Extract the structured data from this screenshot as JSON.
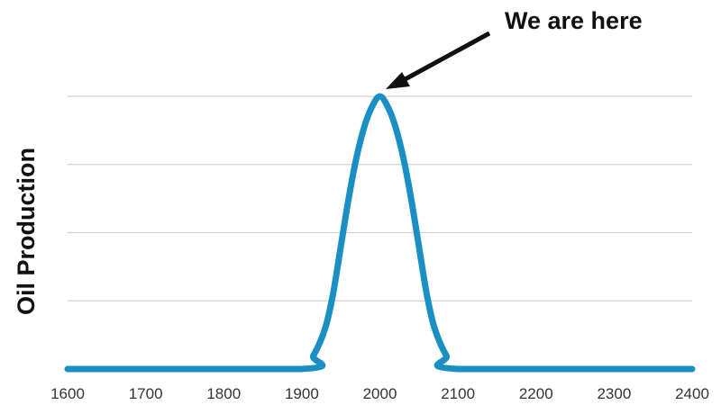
{
  "chart_data": {
    "type": "line",
    "title": "",
    "annotation": "We are here",
    "xlabel": "",
    "ylabel": "Oil Production",
    "x_ticks": [
      1600,
      1700,
      1800,
      1900,
      2000,
      2100,
      2200,
      2300,
      2400
    ],
    "xlim": [
      1600,
      2400
    ],
    "ylim": [
      0,
      4
    ],
    "y_gridlines": [
      1,
      2,
      3,
      4
    ],
    "y_tick_labels_visible": false,
    "grid": true,
    "legend": null,
    "series": [
      {
        "name": "Oil Production",
        "color": "#1a8fc4",
        "x": [
          1600,
          1900,
          1915,
          1930,
          1940,
          1950,
          1960,
          1970,
          1980,
          1990,
          2000,
          2010,
          2020,
          2030,
          2040,
          2050,
          2060,
          2070,
          2085,
          2100,
          2400
        ],
        "y": [
          0,
          0,
          0.2,
          0.6,
          1.1,
          1.8,
          2.5,
          3.1,
          3.55,
          3.85,
          4.0,
          3.85,
          3.55,
          3.1,
          2.5,
          1.8,
          1.1,
          0.6,
          0.2,
          0,
          0
        ]
      }
    ],
    "annotation_arrow": {
      "points_to": {
        "x": 2000,
        "y": 4.0
      }
    }
  },
  "colors": {
    "line": "#1a8fc4",
    "grid": "#d9cfc9",
    "text": "#111111",
    "tick_text": "#333333"
  }
}
